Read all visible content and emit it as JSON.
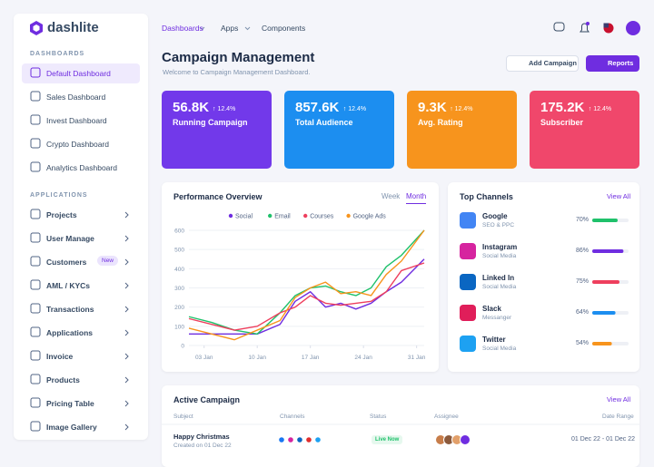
{
  "brand": "dashlite",
  "sidebar": {
    "sections": [
      {
        "title": "DASHBOARDS",
        "items": [
          "Default Dashboard",
          "Sales Dashboard",
          "Invest Dashboard",
          "Crypto Dashboard",
          "Analytics Dashboard"
        ]
      },
      {
        "title": "APPLICATIONS",
        "items": [
          "Projects",
          "User Manage",
          "Customers",
          "AML / KYCs",
          "Transactions",
          "Applications",
          "Invoice",
          "Products",
          "Pricing Table",
          "Image Gallery"
        ]
      }
    ],
    "badge": "New"
  },
  "nav": [
    "Dashboards",
    "Apps",
    "Components"
  ],
  "header": {
    "title": "Campaign Management",
    "subtitle": "Welcome to Campaign Management Dashboard.",
    "buttons": [
      "Add Campaign",
      "Reports"
    ]
  },
  "stats": [
    {
      "value": "56.8K",
      "change": "↑ 12.4%",
      "label": "Running Campaign",
      "color": "#7239ea"
    },
    {
      "value": "857.6K",
      "change": "↑ 12.4%",
      "label": "Total Audience",
      "color": "#1c8ef0"
    },
    {
      "value": "9.3K",
      "change": "↑ 12.4%",
      "label": "Avg. Rating",
      "color": "#f7941d"
    },
    {
      "value": "175.2K",
      "change": "↑ 12.4%",
      "label": "Subscriber",
      "color": "#f0476b"
    }
  ],
  "performance": {
    "title": "Performance Overview",
    "tabs": [
      "Week",
      "Month"
    ],
    "chart": {
      "type": "line",
      "x": [
        1,
        4,
        7,
        10,
        13,
        15,
        17,
        19,
        21,
        23,
        25,
        27,
        29,
        32
      ],
      "xlim": [
        1,
        32
      ],
      "xticks": [
        {
          "value": 3,
          "label": "03 Jan"
        },
        {
          "value": 10,
          "label": "10 Jan"
        },
        {
          "value": 17,
          "label": "17 Jan"
        },
        {
          "value": 24,
          "label": "24 Jan"
        },
        {
          "value": 31,
          "label": "31 Jan"
        }
      ],
      "ylim": [
        0,
        600
      ],
      "yticks": [
        0,
        100,
        200,
        300,
        400,
        500,
        600
      ],
      "grid": true,
      "series": [
        {
          "name": "Social",
          "color": "#6f2de0",
          "values": [
            60,
            60,
            60,
            60,
            110,
            230,
            280,
            200,
            220,
            190,
            220,
            280,
            330,
            450
          ]
        },
        {
          "name": "Email",
          "color": "#1fc16b",
          "values": [
            150,
            120,
            80,
            60,
            170,
            260,
            300,
            310,
            280,
            260,
            300,
            410,
            470,
            600
          ]
        },
        {
          "name": "Courses",
          "color": "#ee3f5d",
          "values": [
            140,
            110,
            80,
            100,
            170,
            200,
            260,
            220,
            210,
            220,
            230,
            280,
            390,
            430
          ]
        },
        {
          "name": "Google Ads",
          "color": "#f7941d",
          "values": [
            90,
            60,
            30,
            80,
            130,
            250,
            300,
            330,
            270,
            280,
            260,
            370,
            440,
            600
          ]
        }
      ]
    }
  },
  "channels": {
    "title": "Top Channels",
    "view_all": "View All",
    "items": [
      {
        "name": "Google",
        "sub": "SEO & PPC",
        "percent": 70,
        "percent_label": "70%",
        "color": "#1fc16b"
      },
      {
        "name": "Instagram",
        "sub": "Social Media",
        "percent": 86,
        "percent_label": "86%",
        "color": "#6f2de0"
      },
      {
        "name": "Linked In",
        "sub": "Social Media",
        "percent": 75,
        "percent_label": "75%",
        "color": "#ee3f5d"
      },
      {
        "name": "Slack",
        "sub": "Messanger",
        "percent": 64,
        "percent_label": "64%",
        "color": "#1c8ef0"
      },
      {
        "name": "Twitter",
        "sub": "Social Media",
        "percent": 54,
        "percent_label": "54%",
        "color": "#f7941d"
      }
    ]
  },
  "campaign": {
    "title": "Active Campaign",
    "view_all": "View All",
    "columns": [
      "Subject",
      "Channels",
      "Status",
      "Assignee",
      "Date Range"
    ],
    "rows": [
      {
        "subject": "Happy Christmas",
        "created": "Created on 01 Dec 22",
        "status": "Live Now",
        "date": "01 Dec 22 - 01 Dec 22"
      }
    ]
  }
}
